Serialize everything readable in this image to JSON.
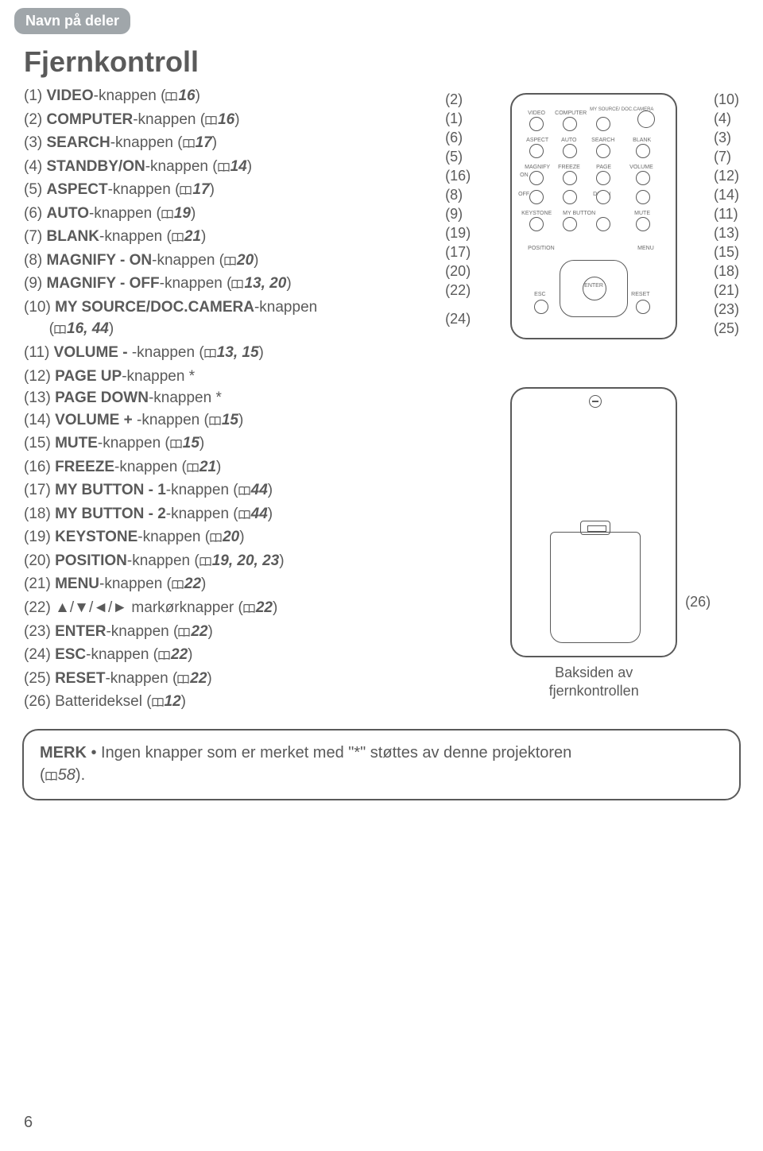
{
  "header": {
    "tab": "Navn på deler"
  },
  "title": "Fjernkontroll",
  "items": [
    {
      "n": "(1)",
      "label": "VIDEO",
      "suffix": "-knappen",
      "page": "16"
    },
    {
      "n": "(2)",
      "label": "COMPUTER",
      "suffix": "-knappen",
      "page": "16"
    },
    {
      "n": "(3)",
      "label": "SEARCH",
      "suffix": "-knappen",
      "page": "17"
    },
    {
      "n": "(4)",
      "label": "STANDBY/ON",
      "suffix": "-knappen",
      "page": "14"
    },
    {
      "n": "(5)",
      "label": "ASPECT",
      "suffix": "-knappen",
      "page": "17"
    },
    {
      "n": "(6)",
      "label": "AUTO",
      "suffix": "-knappen",
      "page": "19"
    },
    {
      "n": "(7)",
      "label": "BLANK",
      "suffix": "-knappen",
      "page": "21"
    },
    {
      "n": "(8)",
      "label": "MAGNIFY - ON",
      "suffix": "-knappen",
      "page": "20"
    },
    {
      "n": "(9)",
      "label": "MAGNIFY - OFF",
      "suffix": "-knappen",
      "page": "13, 20"
    },
    {
      "n": "(10)",
      "label": "MY SOURCE/DOC.CAMERA",
      "suffix": "-knappen",
      "page": "16, 44",
      "indent": true
    },
    {
      "n": "(11)",
      "label": "VOLUME -",
      "suffix": " -knappen",
      "page": "13, 15"
    },
    {
      "n": "(12)",
      "label": "PAGE UP",
      "suffix": "-knappen *",
      "nopage": true
    },
    {
      "n": "(13)",
      "label": "PAGE DOWN",
      "suffix": "-knappen *",
      "nopage": true
    },
    {
      "n": "(14)",
      "label": "VOLUME +",
      "suffix": " -knappen",
      "page": "15"
    },
    {
      "n": "(15)",
      "label": "MUTE",
      "suffix": "-knappen",
      "page": "15"
    },
    {
      "n": "(16)",
      "label": "FREEZE",
      "suffix": "-knappen",
      "page": "21"
    },
    {
      "n": "(17)",
      "label": "MY BUTTON - 1",
      "suffix": "-knappen",
      "page": "44"
    },
    {
      "n": "(18)",
      "label": "MY BUTTON - 2",
      "suffix": "-knappen",
      "page": "44"
    },
    {
      "n": "(19)",
      "label": "KEYSTONE",
      "suffix": "-knappen",
      "page": "20"
    },
    {
      "n": "(20)",
      "label": "POSITION",
      "suffix": "-knappen",
      "page": "19, 20, 23"
    },
    {
      "n": "(21)",
      "label": "MENU",
      "suffix": "-knappen",
      "page": "22"
    },
    {
      "n": "(22)",
      "label": "▲/▼/◄/►",
      "suffix": " markørknapper",
      "page": "22",
      "plain": true
    },
    {
      "n": "(23)",
      "label": "ENTER",
      "suffix": "-knappen",
      "page": "22"
    },
    {
      "n": "(24)",
      "label": "ESC",
      "suffix": "-knappen",
      "page": "22"
    },
    {
      "n": "(25)",
      "label": "RESET",
      "suffix": "-knappen",
      "page": "22"
    },
    {
      "n": "(26)",
      "label": "Batterideksel",
      "suffix": "",
      "page": "12",
      "plain": true
    }
  ],
  "callouts_left": [
    "(2)",
    "(1)",
    "(6)",
    "(5)",
    "(16)",
    "(8)",
    "(9)",
    "(19)",
    "(17)",
    "(20)",
    "(22)",
    "",
    "(24)"
  ],
  "callouts_right": [
    "(10)",
    "(4)",
    "(3)",
    "(7)",
    "(12)",
    "(14)",
    "(11)",
    "(13)",
    "(15)",
    "(18)",
    "(21)",
    "(23)",
    "(25)"
  ],
  "remote_buttons": {
    "row1": [
      "VIDEO",
      "COMPUTER",
      "MY SOURCE/\nDOC.CAMERA",
      ""
    ],
    "row2": [
      "ASPECT",
      "AUTO",
      "SEARCH",
      "BLANK"
    ],
    "row3": [
      "MAGNIFY",
      "FREEZE",
      "PAGE",
      "VOLUME"
    ],
    "row4": [
      "KEYSTONE",
      "MY BUTTON",
      "",
      "MUTE"
    ],
    "position": "POSITION",
    "menu": "MENU",
    "enter": "ENTER",
    "esc": "ESC",
    "reset": "RESET",
    "on": "ON",
    "off": "OFF",
    "up": "UP",
    "down": "DOWN"
  },
  "back_caption_1": "Baksiden av",
  "back_caption_2": "fjernkontrollen",
  "label26": "(26)",
  "merk": {
    "prefix": "MERK",
    "text": " • Ingen knapper som er merket med \"*\" støttes av denne projektoren",
    "ref": "58"
  },
  "page_number": "6",
  "colors": {
    "text": "#5a5a5a",
    "tab_bg": "#a0a6aa",
    "tab_text": "#ffffff"
  }
}
